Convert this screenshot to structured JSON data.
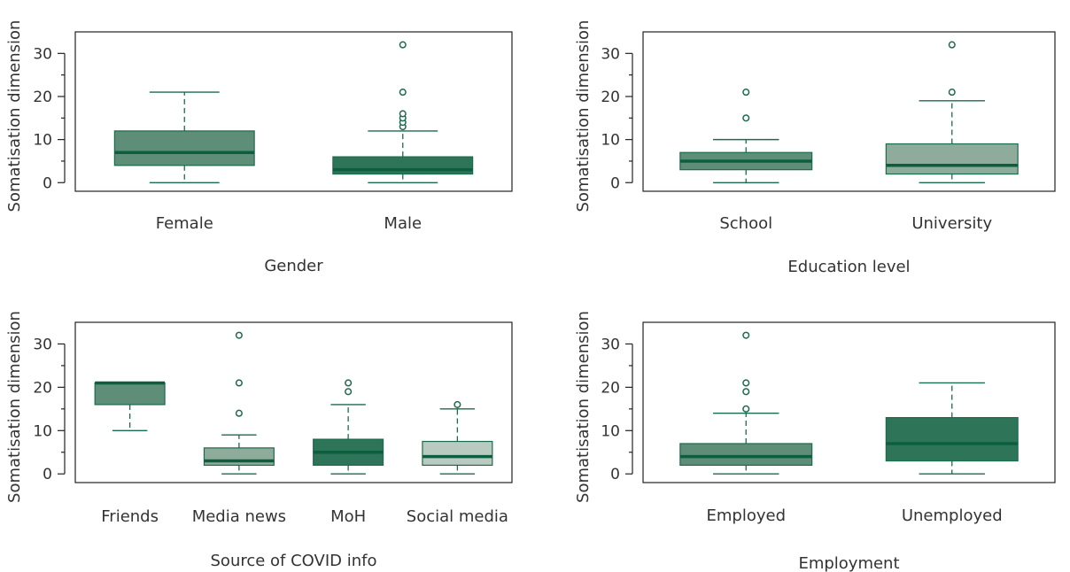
{
  "chart_data": [
    {
      "type": "box",
      "xlabel": "Gender",
      "ylabel": "Somatisation dimension",
      "ylim": [
        -2,
        35
      ],
      "yticks": [
        0,
        10,
        20,
        30
      ],
      "categories": [
        "Female",
        "Male"
      ],
      "boxes": [
        {
          "label": "Female",
          "min": 0,
          "q1": 4,
          "median": 7,
          "q3": 12,
          "max": 21,
          "outliers": [],
          "color": "#5e8d78"
        },
        {
          "label": "Male",
          "min": 0,
          "q1": 2,
          "median": 3,
          "q3": 6,
          "max": 12,
          "outliers": [
            13,
            14,
            15,
            16,
            21,
            32
          ],
          "color": "#2e7459"
        }
      ]
    },
    {
      "type": "box",
      "xlabel": "Education level",
      "ylabel": "Somatisation dimension",
      "ylim": [
        -2,
        35
      ],
      "yticks": [
        0,
        10,
        20,
        30
      ],
      "categories": [
        "School",
        "University"
      ],
      "boxes": [
        {
          "label": "School",
          "min": 0,
          "q1": 3,
          "median": 5,
          "q3": 7,
          "max": 10,
          "outliers": [
            15,
            21
          ],
          "color": "#5e8d78"
        },
        {
          "label": "University",
          "min": 0,
          "q1": 2,
          "median": 4,
          "q3": 9,
          "max": 19,
          "outliers": [
            21,
            32
          ],
          "color": "#8fab9c"
        }
      ]
    },
    {
      "type": "box",
      "xlabel": "Source of COVID info",
      "ylabel": "Somatisation dimension",
      "ylim": [
        -2,
        35
      ],
      "yticks": [
        0,
        10,
        20,
        30
      ],
      "categories": [
        "Friends",
        "Media news",
        "MoH",
        "Social media"
      ],
      "boxes": [
        {
          "label": "Friends",
          "min": 10,
          "q1": 16,
          "median": 21,
          "q3": 21,
          "max": 21,
          "outliers": [],
          "color": "#5e8d78"
        },
        {
          "label": "Media news",
          "min": 0,
          "q1": 2,
          "median": 3,
          "q3": 6,
          "max": 9,
          "outliers": [
            14,
            21,
            32
          ],
          "color": "#8fab9c"
        },
        {
          "label": "MoH",
          "min": 0,
          "q1": 2,
          "median": 5,
          "q3": 8,
          "max": 16,
          "outliers": [
            19,
            21
          ],
          "color": "#2e7459"
        },
        {
          "label": "Social media",
          "min": 0,
          "q1": 2,
          "median": 4,
          "q3": 7.5,
          "max": 15,
          "outliers": [
            16
          ],
          "color": "#b9cbc1"
        }
      ]
    },
    {
      "type": "box",
      "xlabel": "Employment",
      "ylabel": "Somatisation dimension",
      "ylim": [
        -2,
        35
      ],
      "yticks": [
        0,
        10,
        20,
        30
      ],
      "categories": [
        "Employed",
        "Unemployed"
      ],
      "boxes": [
        {
          "label": "Employed",
          "min": 0,
          "q1": 2,
          "median": 4,
          "q3": 7,
          "max": 14,
          "outliers": [
            15,
            19,
            21,
            32
          ],
          "color": "#5e8d78"
        },
        {
          "label": "Unemployed",
          "min": 0,
          "q1": 3,
          "median": 7,
          "q3": 13,
          "max": 21,
          "outliers": [],
          "color": "#2e7459"
        }
      ]
    }
  ],
  "colors": {
    "median_line": "#0d5e3f",
    "whisker": "#1b6b4d",
    "outlier": "#1b6b4d",
    "axis": "#222222"
  }
}
